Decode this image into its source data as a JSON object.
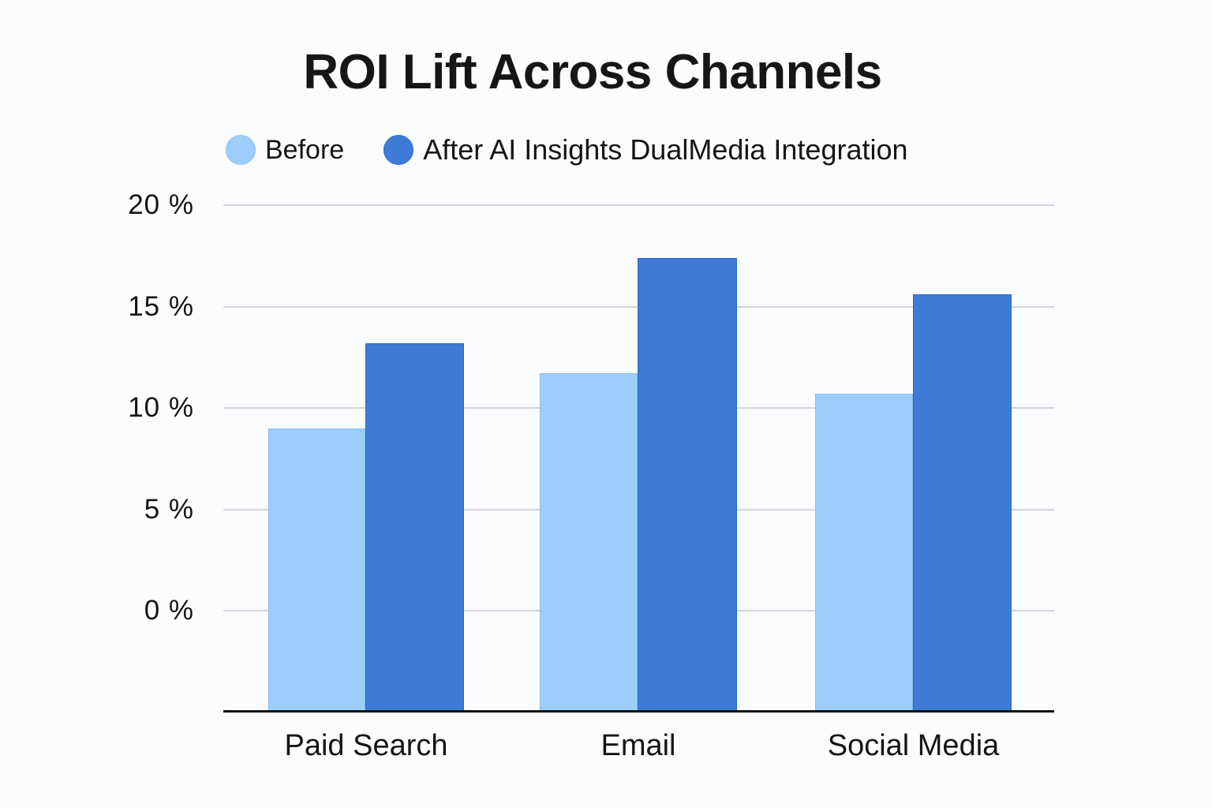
{
  "chart_data": {
    "type": "bar",
    "title": "ROI Lift Across Channels",
    "categories": [
      "Paid Search",
      "Email",
      "Social Media"
    ],
    "series": [
      {
        "name": "Before",
        "color": "#9ccdfb",
        "values": [
          9.0,
          11.7,
          10.7
        ]
      },
      {
        "name": "After AI Insights DualMedia Integration",
        "color": "#3d7bd6",
        "values": [
          13.2,
          17.4,
          15.6
        ]
      }
    ],
    "xlabel": "",
    "ylabel": "",
    "yticks": [
      "20 %",
      "15 %",
      "10 %",
      "5 %",
      "0 %"
    ],
    "ylim": [
      0,
      20
    ],
    "grid": true,
    "legend_position": "top"
  },
  "title": "ROI Lift Across Channels",
  "legend": {
    "before": "Before",
    "after": "After AI Insights DualMedia Integration"
  }
}
